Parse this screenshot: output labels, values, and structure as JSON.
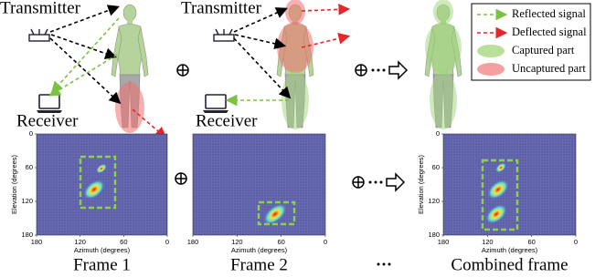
{
  "top": {
    "transmitter_labels": [
      "Transmitter",
      "Transmitter"
    ],
    "receiver_labels": [
      "Receiver",
      "Receiver"
    ]
  },
  "legend": [
    "Reflected signal",
    "Deflected signal",
    "Captured part",
    "Uncaptured part"
  ],
  "heatmaps": [
    {
      "ylabel": "Elevation (degrees)",
      "yticks": [
        0,
        60,
        120,
        180
      ],
      "xlabel": "Azimuth (degrees)",
      "xticks": [
        180,
        120,
        60,
        0
      ],
      "caption": "Frame 1"
    },
    {
      "xlabel": "Azimuth (degrees)",
      "xticks": [
        180,
        120,
        60,
        0
      ],
      "caption": "Frame 2"
    },
    {
      "ylabel": "Elevation (degrees)",
      "yticks": [
        0,
        60,
        120,
        180
      ],
      "xlabel": "Azimuth (degrees)",
      "xticks": [
        180,
        120,
        60,
        0
      ],
      "caption": "Combined frame"
    }
  ]
}
